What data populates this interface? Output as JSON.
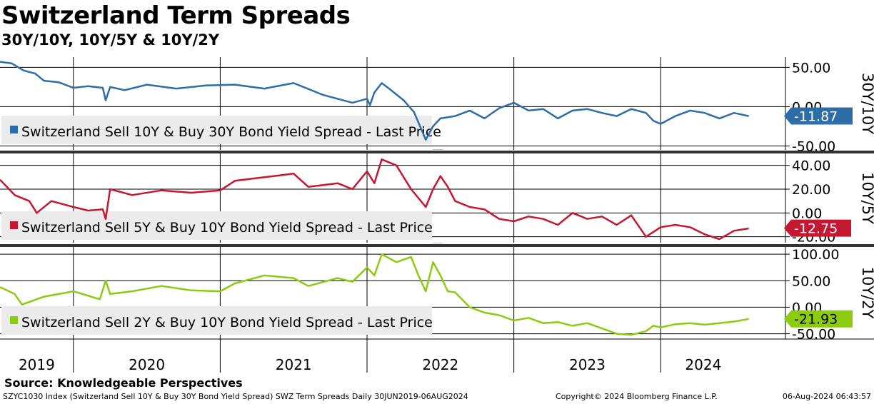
{
  "header": {
    "title": "Switzerland Term Spreads",
    "subtitle": "30Y/10Y, 10Y/5Y & 10Y/2Y"
  },
  "footer": {
    "source": "Source: Knowledgeable Perspectives",
    "description": "SZYC1030 Index (Switzerland Sell 10Y & Buy 30Y Bond Yield Spread) SWZ Term Spreads  Daily 30JUN2019-06AUG2024",
    "copyright": "Copyright© 2024 Bloomberg Finance L.P.",
    "timestamp": "06-Aug-2024 06:43:57"
  },
  "chart_data": [
    {
      "type": "line",
      "panel": "30Y/10Y",
      "axis_title": "30Y/10Y",
      "legend": "Switzerland Sell 10Y & Buy 30Y Bond Yield Spread - Last Price",
      "color": "#2e6ea8",
      "last_value": -11.87,
      "last_label": "-11.87",
      "ylim": [
        -55,
        63
      ],
      "yticks": [
        50,
        0,
        -50
      ],
      "ytick_labels": [
        "50.00",
        "0.00",
        "-50.00"
      ],
      "x": [
        2019.5,
        2019.58,
        2019.66,
        2019.74,
        2019.8,
        2019.9,
        2020.0,
        2020.1,
        2020.2,
        2020.22,
        2020.25,
        2020.35,
        2020.5,
        2020.7,
        2020.9,
        2021.1,
        2021.3,
        2021.5,
        2021.7,
        2021.8,
        2021.9,
        2022.0,
        2022.02,
        2022.05,
        2022.1,
        2022.15,
        2022.25,
        2022.32,
        2022.4,
        2022.45,
        2022.5,
        2022.6,
        2022.7,
        2022.8,
        2022.9,
        2023.0,
        2023.1,
        2023.2,
        2023.3,
        2023.4,
        2023.5,
        2023.6,
        2023.7,
        2023.8,
        2023.9,
        2023.95,
        2024.0,
        2024.1,
        2024.2,
        2024.3,
        2024.4,
        2024.5,
        2024.6
      ],
      "values": [
        57,
        55,
        46,
        42,
        33,
        31,
        24,
        26,
        24,
        8,
        25,
        21,
        28,
        23,
        27,
        28,
        23,
        30,
        15,
        10,
        5,
        10,
        2,
        18,
        30,
        23,
        8,
        -7,
        -42,
        -25,
        -15,
        -12,
        -5,
        -15,
        -2,
        5,
        -5,
        -3,
        -15,
        -5,
        -3,
        -8,
        -12,
        -3,
        -8,
        -18,
        -22,
        -12,
        -5,
        -8,
        -15,
        -8,
        -12
      ]
    },
    {
      "type": "line",
      "panel": "10Y/5Y",
      "axis_title": "10Y/5Y",
      "legend": "Switzerland Sell 5Y & Buy 10Y Bond Yield Spread - Last Price",
      "color": "#c41730",
      "last_value": -12.75,
      "last_label": "-12.75",
      "ylim": [
        -25,
        50
      ],
      "yticks": [
        40,
        20,
        0,
        -20
      ],
      "ytick_labels": [
        "40.00",
        "20.00",
        "0.00",
        "-20.00"
      ],
      "x": [
        2019.5,
        2019.6,
        2019.7,
        2019.75,
        2019.85,
        2020.0,
        2020.1,
        2020.2,
        2020.22,
        2020.25,
        2020.4,
        2020.6,
        2020.8,
        2021.0,
        2021.1,
        2021.3,
        2021.5,
        2021.6,
        2021.8,
        2021.9,
        2022.0,
        2022.05,
        2022.1,
        2022.2,
        2022.3,
        2022.4,
        2022.45,
        2022.5,
        2022.55,
        2022.6,
        2022.7,
        2022.8,
        2022.9,
        2023.0,
        2023.1,
        2023.2,
        2023.3,
        2023.4,
        2023.5,
        2023.6,
        2023.7,
        2023.8,
        2023.9,
        2024.0,
        2024.1,
        2024.2,
        2024.3,
        2024.4,
        2024.5,
        2024.6
      ],
      "values": [
        28,
        15,
        10,
        0,
        10,
        5,
        2,
        3,
        -5,
        20,
        15,
        19,
        17,
        19,
        27,
        30,
        33,
        22,
        25,
        20,
        35,
        25,
        45,
        40,
        20,
        5,
        20,
        31,
        22,
        10,
        5,
        3,
        -5,
        -7,
        -3,
        -5,
        -10,
        0,
        -5,
        -3,
        -10,
        -2,
        -20,
        -12,
        -10,
        -12,
        -18,
        -22,
        -15,
        -13
      ]
    },
    {
      "type": "line",
      "panel": "10Y/2Y",
      "axis_title": "10Y/2Y",
      "legend": "Switzerland Sell 2Y & Buy 10Y Bond Yield Spread - Last Price",
      "color": "#8ccc10",
      "last_value": -21.93,
      "last_label": "-21.93",
      "ylim": [
        -60,
        115
      ],
      "yticks": [
        100,
        50,
        0,
        -50
      ],
      "ytick_labels": [
        "100.00",
        "50.00",
        "0.00",
        "-50.00"
      ],
      "x": [
        2019.5,
        2019.6,
        2019.65,
        2019.8,
        2020.0,
        2020.18,
        2020.22,
        2020.25,
        2020.4,
        2020.6,
        2020.8,
        2021.0,
        2021.1,
        2021.3,
        2021.5,
        2021.6,
        2021.8,
        2021.9,
        2022.0,
        2022.05,
        2022.1,
        2022.2,
        2022.3,
        2022.35,
        2022.4,
        2022.45,
        2022.5,
        2022.55,
        2022.6,
        2022.7,
        2022.8,
        2022.9,
        2023.0,
        2023.1,
        2023.2,
        2023.3,
        2023.4,
        2023.5,
        2023.6,
        2023.7,
        2023.8,
        2023.9,
        2023.95,
        2024.0,
        2024.1,
        2024.2,
        2024.3,
        2024.4,
        2024.5,
        2024.6
      ],
      "values": [
        38,
        25,
        5,
        20,
        30,
        15,
        50,
        25,
        30,
        40,
        32,
        30,
        45,
        60,
        55,
        40,
        55,
        48,
        75,
        60,
        100,
        85,
        95,
        60,
        30,
        85,
        60,
        30,
        28,
        0,
        -10,
        -15,
        -25,
        -20,
        -30,
        -28,
        -35,
        -30,
        -40,
        -50,
        -52,
        -45,
        -35,
        -38,
        -32,
        -30,
        -33,
        -30,
        -27,
        -22
      ]
    }
  ],
  "xaxis": {
    "ticks": [
      2019.5,
      2020.0,
      2021.0,
      2022.0,
      2023.0,
      2024.0
    ],
    "labels": [
      {
        "text": "2019",
        "x": 2019.75
      },
      {
        "text": "2020",
        "x": 2020.5
      },
      {
        "text": "2021",
        "x": 2021.5
      },
      {
        "text": "2022",
        "x": 2022.5
      },
      {
        "text": "2023",
        "x": 2023.5
      },
      {
        "text": "2024",
        "x": 2024.29
      }
    ],
    "xlim": [
      2019.5,
      2024.85
    ]
  }
}
